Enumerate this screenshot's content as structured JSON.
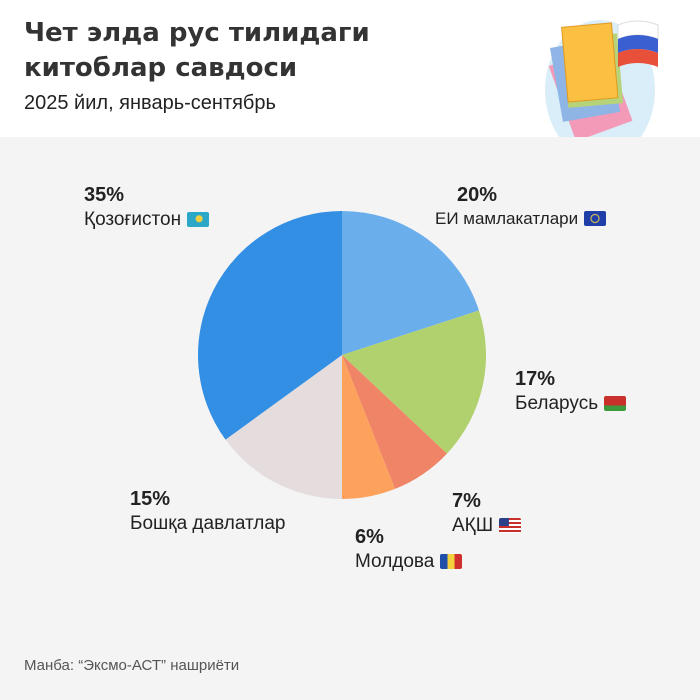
{
  "header": {
    "title": "Чет элда рус тилидаги китоблар савдоси",
    "subtitle": "2025 йил, январь-сентябрь"
  },
  "chart_data": {
    "type": "pie",
    "start_angle": "top",
    "direction": "clockwise",
    "slices": [
      {
        "label": "ЕИ мамлакатлари",
        "value": 20,
        "pct_label": "20%",
        "color": "#6aaeec",
        "flag": "eu-flag-icon"
      },
      {
        "label": "Беларусь",
        "value": 17,
        "pct_label": "17%",
        "color": "#b1d06e",
        "flag": "belarus-flag-icon"
      },
      {
        "label": "АҚШ",
        "value": 7,
        "pct_label": "7%",
        "color": "#f08466",
        "flag": "usa-flag-icon"
      },
      {
        "label": "Молдова",
        "value": 6,
        "pct_label": "6%",
        "color": "#fca25c",
        "flag": "moldova-flag-icon"
      },
      {
        "label": "Бошқа давлатлар",
        "value": 15,
        "pct_label": "15%",
        "color": "#e4dcdd"
      },
      {
        "label": "Қозоғистон",
        "value": 35,
        "pct_label": "35%",
        "color": "#338fe3",
        "flag": "kazakhstan-flag-icon"
      }
    ]
  },
  "footer": {
    "source": "Манба: “Эксмо-АСТ” нашриёти"
  }
}
